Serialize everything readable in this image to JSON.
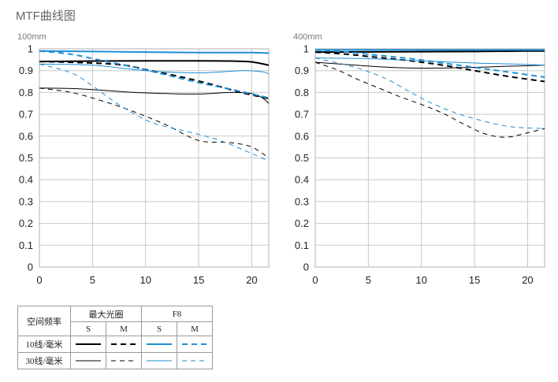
{
  "page": {
    "title": "MTF曲线图"
  },
  "chart_data": [
    {
      "type": "line",
      "title": "100mm",
      "xlim": [
        0,
        21.6
      ],
      "ylim": [
        0,
        1
      ],
      "xticks": [
        0,
        5,
        10,
        15,
        20
      ],
      "yticks": [
        0,
        0.1,
        0.2,
        0.3,
        0.4,
        0.5,
        0.6,
        0.7,
        0.8,
        0.9,
        1
      ],
      "grid": true,
      "series": [
        {
          "key": "max_10_s",
          "color": "#000000",
          "style": "solid",
          "weight": "bold",
          "x": [
            0,
            5,
            10,
            15,
            18,
            20,
            21.6
          ],
          "y": [
            0.942,
            0.944,
            0.945,
            0.945,
            0.944,
            0.94,
            0.925
          ]
        },
        {
          "key": "max_10_m",
          "color": "#000000",
          "style": "dashed",
          "weight": "bold",
          "x": [
            0,
            5,
            8,
            10,
            13,
            16,
            19,
            21.6
          ],
          "y": [
            0.942,
            0.935,
            0.925,
            0.905,
            0.875,
            0.84,
            0.8,
            0.772
          ]
        },
        {
          "key": "max_30_s",
          "color": "#000000",
          "style": "solid",
          "weight": "thin",
          "x": [
            0,
            3,
            6,
            9,
            12,
            15,
            18,
            20,
            21,
            21.6
          ],
          "y": [
            0.82,
            0.818,
            0.81,
            0.8,
            0.795,
            0.793,
            0.8,
            0.795,
            0.775,
            0.75
          ]
        },
        {
          "key": "max_30_m",
          "color": "#000000",
          "style": "dashed",
          "weight": "thin",
          "x": [
            0,
            3,
            6,
            9,
            12,
            15,
            18,
            20,
            21.6
          ],
          "y": [
            0.82,
            0.8,
            0.76,
            0.71,
            0.65,
            0.58,
            0.57,
            0.55,
            0.5
          ]
        },
        {
          "key": "f8_10_s",
          "color": "#1e8fd6",
          "style": "solid",
          "weight": "bold",
          "x": [
            0,
            5,
            10,
            15,
            20,
            21.6
          ],
          "y": [
            0.99,
            0.988,
            0.985,
            0.983,
            0.983,
            0.98
          ]
        },
        {
          "key": "f8_10_m",
          "color": "#1e8fd6",
          "style": "dashed",
          "weight": "bold",
          "x": [
            0,
            3,
            6,
            9,
            12,
            15,
            18,
            21.6
          ],
          "y": [
            0.99,
            0.975,
            0.945,
            0.915,
            0.88,
            0.845,
            0.815,
            0.775
          ]
        },
        {
          "key": "f8_30_s",
          "color": "#1e8fd6",
          "style": "solid",
          "weight": "thin",
          "x": [
            0,
            5,
            10,
            15,
            19,
            21,
            21.6
          ],
          "y": [
            0.93,
            0.925,
            0.9,
            0.89,
            0.9,
            0.895,
            0.885
          ]
        },
        {
          "key": "f8_30_m",
          "color": "#1e8fd6",
          "style": "dashed",
          "weight": "thin",
          "x": [
            0,
            3,
            5,
            7,
            9,
            11,
            14,
            17,
            20,
            21.6
          ],
          "y": [
            0.93,
            0.89,
            0.83,
            0.76,
            0.7,
            0.655,
            0.62,
            0.58,
            0.52,
            0.485
          ]
        }
      ]
    },
    {
      "type": "line",
      "title": "400mm",
      "xlim": [
        0,
        21.6
      ],
      "ylim": [
        0,
        1
      ],
      "xticks": [
        0,
        5,
        10,
        15,
        20
      ],
      "yticks": [
        0,
        0.1,
        0.2,
        0.3,
        0.4,
        0.5,
        0.6,
        0.7,
        0.8,
        0.9,
        1
      ],
      "grid": true,
      "series": [
        {
          "key": "max_10_s",
          "color": "#000000",
          "style": "solid",
          "weight": "bold",
          "x": [
            0,
            5,
            10,
            15,
            20,
            21.6
          ],
          "y": [
            0.985,
            0.986,
            0.987,
            0.988,
            0.99,
            0.99
          ]
        },
        {
          "key": "max_10_m",
          "color": "#000000",
          "style": "dashed",
          "weight": "bold",
          "x": [
            0,
            3,
            6,
            9,
            12,
            15,
            18,
            21.6
          ],
          "y": [
            0.985,
            0.975,
            0.96,
            0.945,
            0.925,
            0.9,
            0.875,
            0.85
          ]
        },
        {
          "key": "max_30_s",
          "color": "#000000",
          "style": "solid",
          "weight": "thin",
          "x": [
            0,
            3,
            6,
            9,
            12,
            15,
            18,
            21.6
          ],
          "y": [
            0.938,
            0.928,
            0.918,
            0.912,
            0.912,
            0.915,
            0.92,
            0.925
          ]
        },
        {
          "key": "max_30_m",
          "color": "#000000",
          "style": "dashed",
          "weight": "thin",
          "x": [
            0,
            2,
            4,
            6,
            8,
            10,
            12,
            14,
            16,
            18,
            20,
            21.6
          ],
          "y": [
            0.938,
            0.905,
            0.86,
            0.82,
            0.78,
            0.745,
            0.705,
            0.655,
            0.61,
            0.595,
            0.615,
            0.635
          ]
        },
        {
          "key": "f8_10_s",
          "color": "#1e8fd6",
          "style": "solid",
          "weight": "bold",
          "x": [
            0,
            5,
            10,
            15,
            20,
            21.6
          ],
          "y": [
            0.995,
            0.995,
            0.995,
            0.995,
            0.995,
            0.995
          ]
        },
        {
          "key": "f8_10_m",
          "color": "#1e8fd6",
          "style": "dashed",
          "weight": "bold",
          "x": [
            0,
            3,
            6,
            9,
            12,
            15,
            18,
            21.6
          ],
          "y": [
            0.995,
            0.985,
            0.97,
            0.955,
            0.935,
            0.915,
            0.895,
            0.87
          ]
        },
        {
          "key": "f8_30_s",
          "color": "#1e8fd6",
          "style": "solid",
          "weight": "thin",
          "x": [
            0,
            5,
            10,
            15,
            19,
            21.6
          ],
          "y": [
            0.958,
            0.955,
            0.945,
            0.935,
            0.93,
            0.925
          ]
        },
        {
          "key": "f8_30_m",
          "color": "#1e8fd6",
          "style": "dashed",
          "weight": "thin",
          "x": [
            0,
            3,
            5,
            7,
            9,
            11,
            13,
            15,
            17,
            19,
            21.6
          ],
          "y": [
            0.958,
            0.925,
            0.895,
            0.855,
            0.8,
            0.75,
            0.71,
            0.68,
            0.655,
            0.64,
            0.635
          ]
        }
      ]
    }
  ],
  "legend": {
    "header_label": "空间频率",
    "max_aperture_label": "最大光圈",
    "f8_label": "F8",
    "s_label": "S",
    "m_label": "M",
    "row_10_label": "10线/毫米",
    "row_30_label": "30线/毫米",
    "black_color": "#000000",
    "blue_color": "#1e8fd6"
  }
}
